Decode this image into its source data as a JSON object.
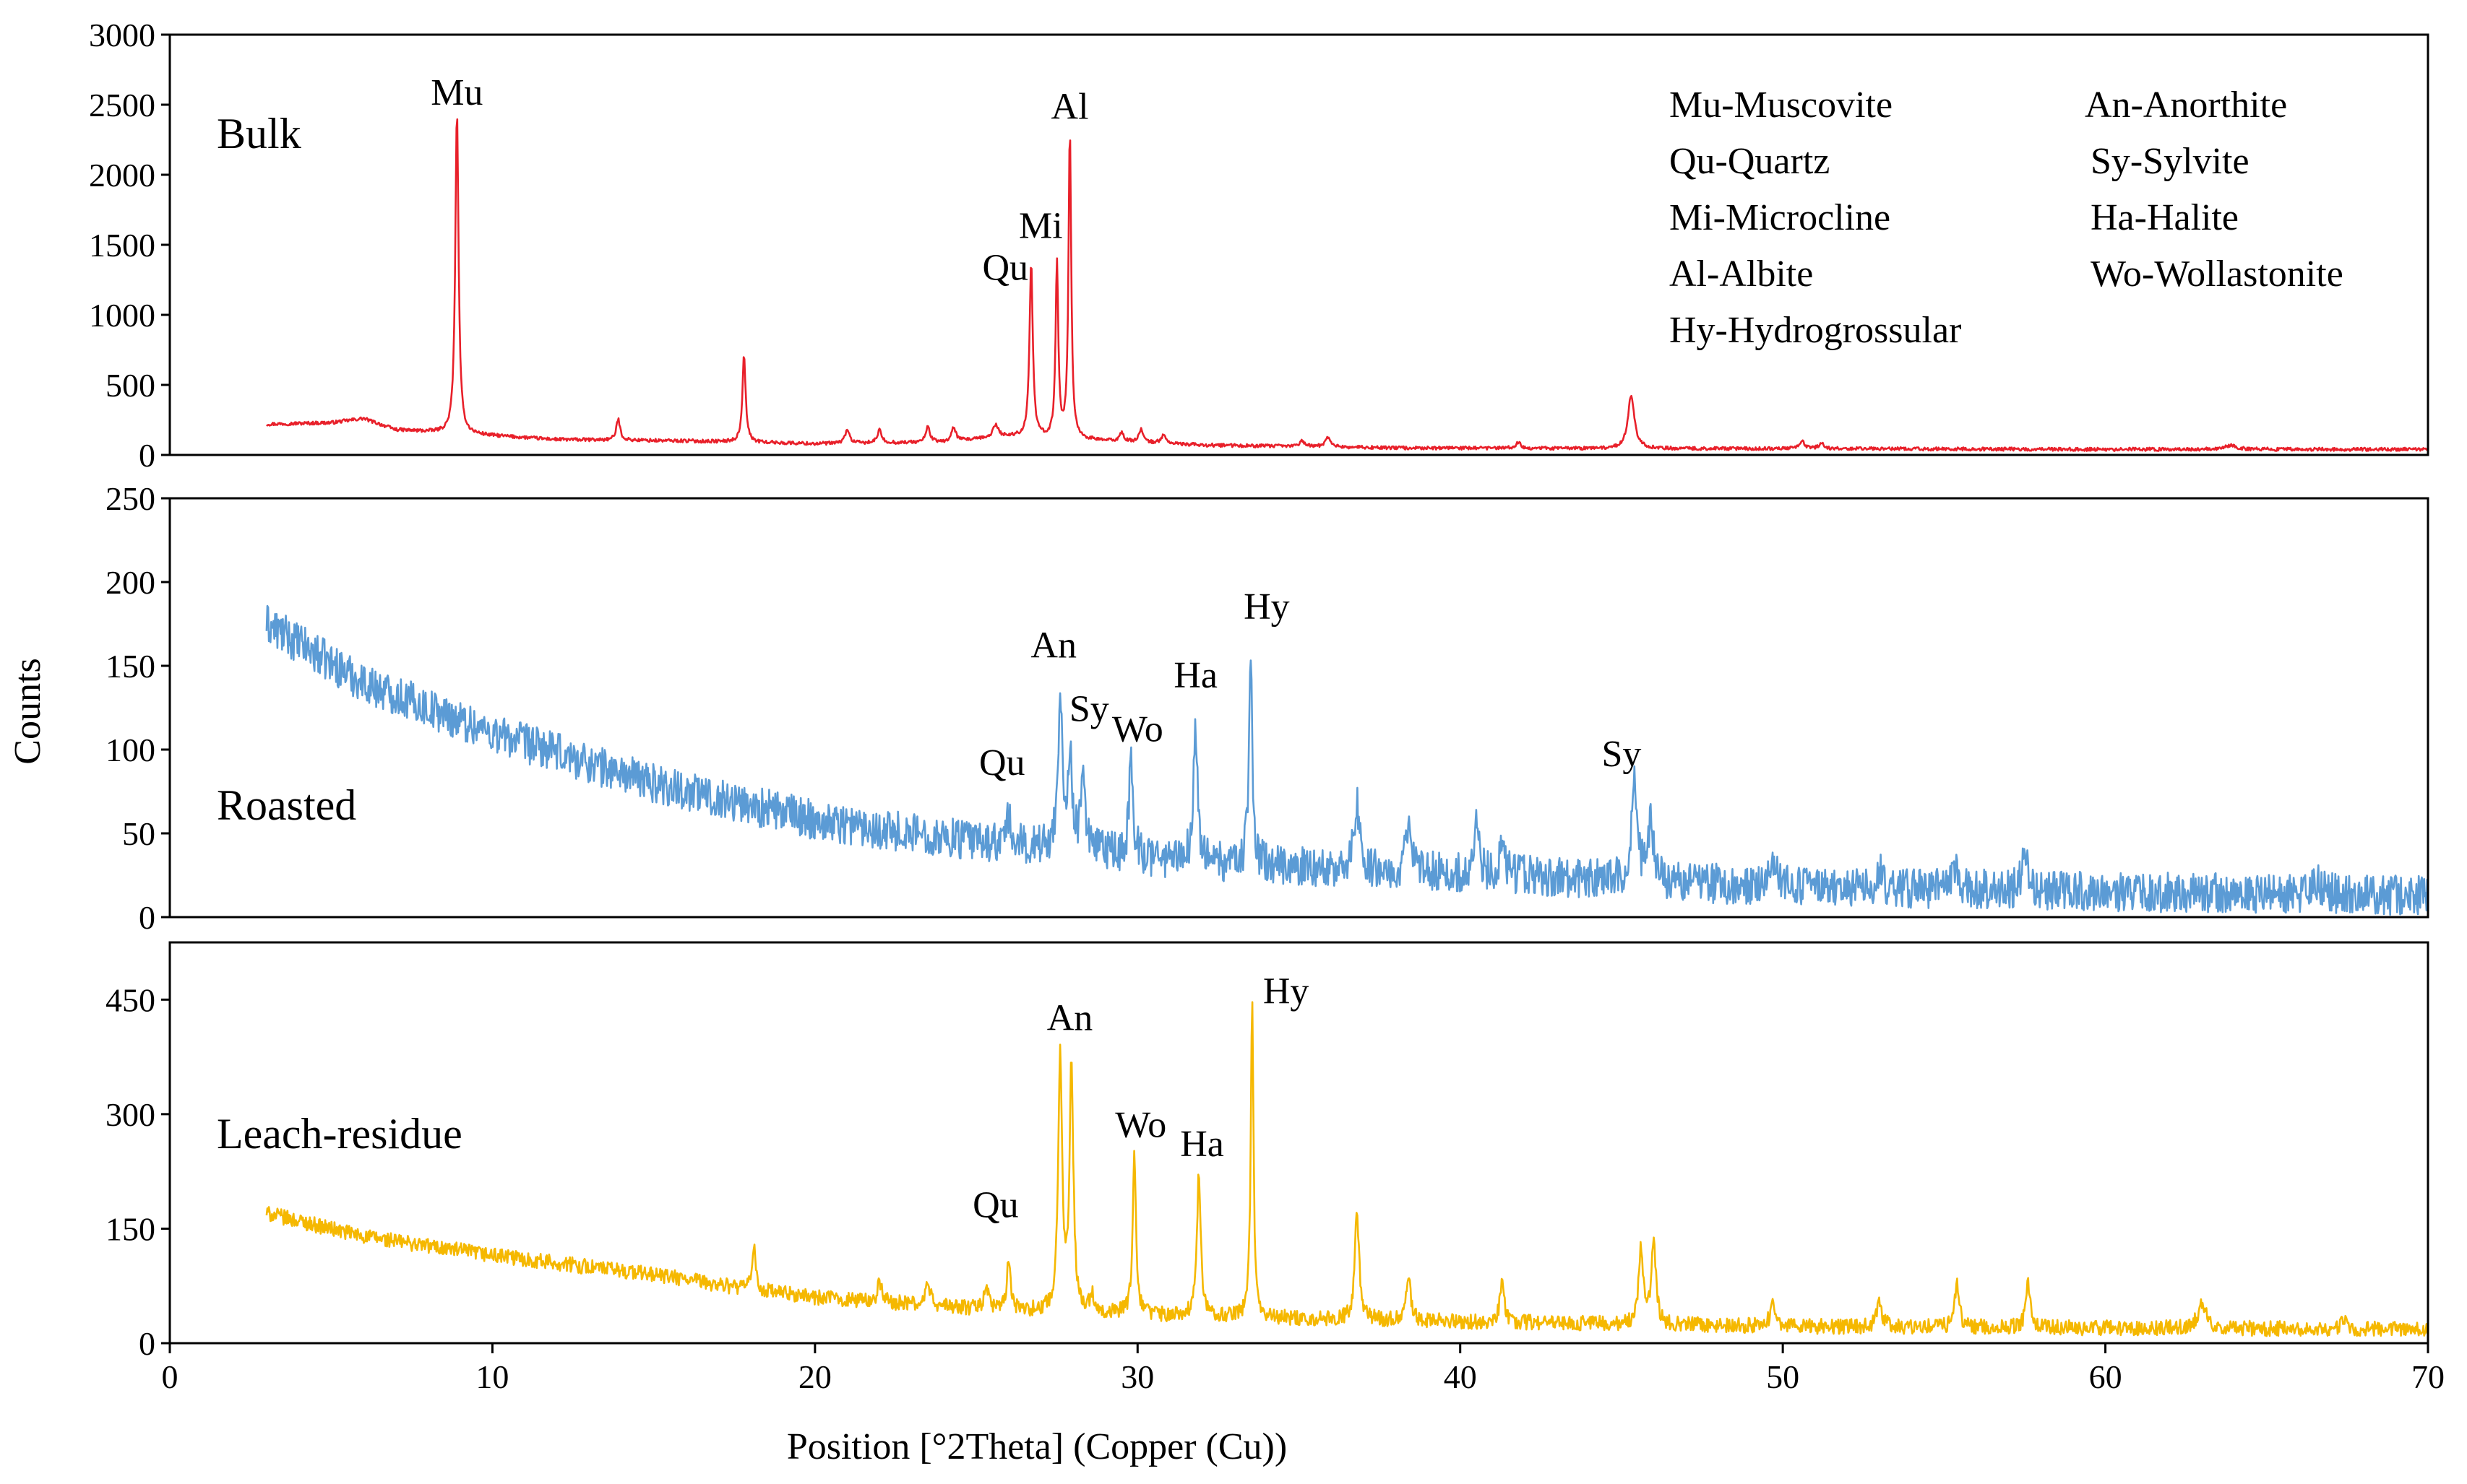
{
  "chart_data": {
    "type": "line",
    "xlabel": "Position [°2Theta] (Copper (Cu))",
    "ylabel": "Counts",
    "xlim": [
      0,
      70
    ],
    "xticks": [
      0,
      10,
      20,
      30,
      40,
      50,
      60,
      70
    ],
    "grid": false,
    "legend_position": "top-right",
    "legend": [
      "Mu-Muscovite",
      "Qu-Quartz",
      "Mi-Microcline",
      "Al-Albite",
      "Hy-Hydrogrossular",
      "An-Anorthite",
      "Sy-Sylvite",
      "Ha-Halite",
      "Wo-Wollastonite"
    ],
    "series": [
      {
        "name": "Bulk",
        "color": "#e8202a",
        "ylim": [
          0,
          3000
        ],
        "yticks": [
          0,
          500,
          1000,
          1500,
          2000,
          2500,
          3000
        ],
        "baseline": [
          [
            3,
            220
          ],
          [
            5,
            230
          ],
          [
            6,
            260
          ],
          [
            7,
            180
          ],
          [
            9,
            150
          ],
          [
            12,
            110
          ],
          [
            16,
            100
          ],
          [
            20,
            80
          ],
          [
            24,
            90
          ],
          [
            26,
            130
          ],
          [
            28,
            110
          ],
          [
            32,
            70
          ],
          [
            38,
            50
          ],
          [
            45,
            45
          ],
          [
            50,
            45
          ],
          [
            60,
            40
          ],
          [
            70,
            40
          ]
        ],
        "noise": 12,
        "peaks": [
          [
            8.9,
            2300,
            0.06
          ],
          [
            13.9,
            150,
            0.07
          ],
          [
            17.8,
            620,
            0.06
          ],
          [
            21.0,
            100,
            0.08
          ],
          [
            22.0,
            90,
            0.08
          ],
          [
            23.5,
            110,
            0.08
          ],
          [
            24.3,
            100,
            0.08
          ],
          [
            25.6,
            90,
            0.1
          ],
          [
            26.7,
            1250,
            0.06
          ],
          [
            27.5,
            1250,
            0.05
          ],
          [
            27.9,
            2200,
            0.05
          ],
          [
            29.5,
            60,
            0.08
          ],
          [
            30.1,
            90,
            0.08
          ],
          [
            30.8,
            60,
            0.08
          ],
          [
            35.1,
            40,
            0.1
          ],
          [
            35.9,
            70,
            0.1
          ],
          [
            41.8,
            40,
            0.1
          ],
          [
            45.3,
            380,
            0.12
          ],
          [
            50.6,
            50,
            0.1
          ],
          [
            51.2,
            40,
            0.1
          ],
          [
            63.9,
            30,
            0.2
          ]
        ],
        "peak_labels": [
          {
            "text": "Mu",
            "x": 8.9,
            "y": 2500
          },
          {
            "text": "Qu",
            "x": 25.9,
            "y": 1250
          },
          {
            "text": "Mi",
            "x": 27.0,
            "y": 1550
          },
          {
            "text": "Al",
            "x": 27.9,
            "y": 2400
          }
        ]
      },
      {
        "name": "Roasted",
        "color": "#5b9bd5",
        "ylim": [
          0,
          250
        ],
        "yticks": [
          0,
          50,
          100,
          150,
          200,
          250
        ],
        "baseline": [
          [
            3,
            175
          ],
          [
            6,
            140
          ],
          [
            10,
            110
          ],
          [
            15,
            80
          ],
          [
            20,
            58
          ],
          [
            25,
            45
          ],
          [
            28,
            40
          ],
          [
            32,
            32
          ],
          [
            40,
            26
          ],
          [
            45,
            22
          ],
          [
            50,
            18
          ],
          [
            60,
            15
          ],
          [
            70,
            13
          ]
        ],
        "noise": 12,
        "peaks": [
          [
            26.0,
            15,
            0.08
          ],
          [
            27.6,
            90,
            0.08
          ],
          [
            27.9,
            55,
            0.08
          ],
          [
            28.3,
            50,
            0.07
          ],
          [
            29.8,
            60,
            0.07
          ],
          [
            31.8,
            80,
            0.08
          ],
          [
            33.5,
            130,
            0.06
          ],
          [
            36.8,
            40,
            0.1
          ],
          [
            38.4,
            25,
            0.1
          ],
          [
            40.5,
            35,
            0.08
          ],
          [
            41.3,
            15,
            0.1
          ],
          [
            45.4,
            60,
            0.1
          ],
          [
            45.9,
            35,
            0.1
          ],
          [
            49.7,
            10,
            0.2
          ],
          [
            53.0,
            10,
            0.1
          ],
          [
            55.4,
            15,
            0.1
          ],
          [
            57.5,
            25,
            0.1
          ],
          [
            66.5,
            8,
            0.2
          ]
        ],
        "peak_labels": [
          {
            "text": "Qu",
            "x": 25.8,
            "y": 85
          },
          {
            "text": "An",
            "x": 27.4,
            "y": 155
          },
          {
            "text": "Sy",
            "x": 28.5,
            "y": 117
          },
          {
            "text": "Wo",
            "x": 30.0,
            "y": 105
          },
          {
            "text": "Ha",
            "x": 31.8,
            "y": 137
          },
          {
            "text": "Hy",
            "x": 34.0,
            "y": 178
          },
          {
            "text": "Sy",
            "x": 45.0,
            "y": 90
          }
        ]
      },
      {
        "name": "Leach-residue",
        "color": "#f5b800",
        "ylim": [
          0,
          525
        ],
        "yticks": [
          0,
          150,
          300,
          450
        ],
        "baseline": [
          [
            3,
            170
          ],
          [
            6,
            140
          ],
          [
            10,
            115
          ],
          [
            15,
            90
          ],
          [
            18,
            70
          ],
          [
            20,
            60
          ],
          [
            25,
            45
          ],
          [
            28,
            40
          ],
          [
            32,
            35
          ],
          [
            40,
            28
          ],
          [
            45,
            25
          ],
          [
            50,
            22
          ],
          [
            60,
            20
          ],
          [
            70,
            18
          ]
        ],
        "noise": 10,
        "peaks": [
          [
            18.1,
            60,
            0.06
          ],
          [
            22.0,
            25,
            0.08
          ],
          [
            23.5,
            30,
            0.08
          ],
          [
            25.3,
            30,
            0.08
          ],
          [
            26.0,
            70,
            0.06
          ],
          [
            27.6,
            340,
            0.07
          ],
          [
            27.95,
            320,
            0.07
          ],
          [
            28.6,
            20,
            0.1
          ],
          [
            29.9,
            210,
            0.06
          ],
          [
            31.9,
            190,
            0.07
          ],
          [
            33.55,
            420,
            0.05
          ],
          [
            36.8,
            140,
            0.08
          ],
          [
            38.4,
            60,
            0.08
          ],
          [
            41.3,
            55,
            0.08
          ],
          [
            45.6,
            100,
            0.08
          ],
          [
            46.0,
            110,
            0.08
          ],
          [
            49.7,
            30,
            0.1
          ],
          [
            53.0,
            30,
            0.1
          ],
          [
            55.4,
            60,
            0.08
          ],
          [
            57.6,
            60,
            0.08
          ],
          [
            63.0,
            35,
            0.15
          ],
          [
            67.4,
            15,
            0.1
          ]
        ],
        "peak_labels": [
          {
            "text": "Qu",
            "x": 25.6,
            "y": 165
          },
          {
            "text": "An",
            "x": 27.9,
            "y": 410
          },
          {
            "text": "Wo",
            "x": 30.1,
            "y": 270
          },
          {
            "text": "Ha",
            "x": 32.0,
            "y": 245
          },
          {
            "text": "Hy",
            "x": 34.6,
            "y": 445
          }
        ]
      }
    ]
  }
}
